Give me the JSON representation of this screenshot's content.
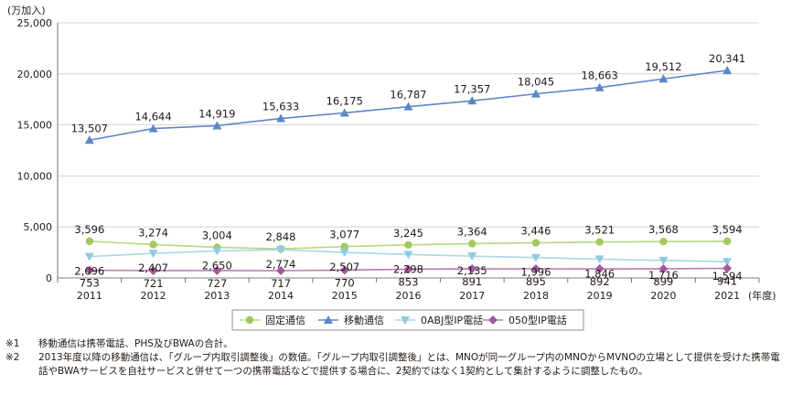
{
  "chart_data": {
    "type": "line",
    "unit_label": "(万加入)",
    "x_unit": "(年度)",
    "categories": [
      "2011",
      "2012",
      "2013",
      "2014",
      "2015",
      "2016",
      "2017",
      "2018",
      "2019",
      "2020",
      "2021"
    ],
    "ylim": [
      0,
      25000
    ],
    "yticks": [
      0,
      5000,
      10000,
      15000,
      20000,
      25000
    ],
    "ytick_labels": [
      "0",
      "5,000",
      "10,000",
      "15,000",
      "20,000",
      "25,000"
    ],
    "grid": true,
    "legend_position": "bottom",
    "series": [
      {
        "name": "固定通信",
        "marker": "circle",
        "color": "#a4c95f",
        "line_color": "#b9d67f",
        "values": [
          3596,
          3274,
          3004,
          2848,
          3077,
          3245,
          3364,
          3446,
          3521,
          3568,
          3594
        ],
        "labels": [
          "3,596",
          "3,274",
          "3,004",
          "2,848",
          "3,077",
          "3,245",
          "3,364",
          "3,446",
          "3,521",
          "3,568",
          "3,594"
        ]
      },
      {
        "name": "移動通信",
        "marker": "triangle-up",
        "color": "#5a86c5",
        "line_color": "#5a86c5",
        "values": [
          13507,
          14644,
          14919,
          15633,
          16175,
          16787,
          17357,
          18045,
          18663,
          19512,
          20341
        ],
        "labels": [
          "13,507",
          "14,644",
          "14,919",
          "15,633",
          "16,175",
          "16,787",
          "17,357",
          "18,045",
          "18,663",
          "19,512",
          "20,341"
        ]
      },
      {
        "name": "0ABJ型IP電話",
        "marker": "triangle-down",
        "color": "#8fcbe0",
        "line_color": "#a9d7e7",
        "values": [
          2096,
          2407,
          2650,
          2774,
          2507,
          2298,
          2135,
          1996,
          1846,
          1716,
          1594
        ],
        "labels": [
          "2,096",
          "2,407",
          "2,650",
          "2,774",
          "2,507",
          "2,298",
          "2,135",
          "1,996",
          "1,846",
          "1,716",
          "1,594"
        ]
      },
      {
        "name": "050型IP電話",
        "marker": "diamond",
        "color": "#a3599d",
        "line_color": "#b77bb2",
        "values": [
          753,
          721,
          727,
          717,
          770,
          853,
          891,
          895,
          892,
          899,
          941
        ],
        "labels": [
          "753",
          "721",
          "727",
          "717",
          "770",
          "853",
          "891",
          "895",
          "892",
          "899",
          "941"
        ]
      }
    ]
  },
  "notes": [
    {
      "mark": "※1",
      "text": "移動通信は携帯電話、PHS及びBWAの合計。"
    },
    {
      "mark": "※2",
      "text": "2013年度以降の移動通信は、「グループ内取引調整後」の数値。「グループ内取引調整後」とは、MNOが同一グループ内のMNOからMVNOの立場として提供を受けた携帯電話やBWAサービスを自社サービスと併せて一つの携帯電話などで提供する場合に、2契約ではなく1契約として集計するように調整したもの。"
    }
  ]
}
